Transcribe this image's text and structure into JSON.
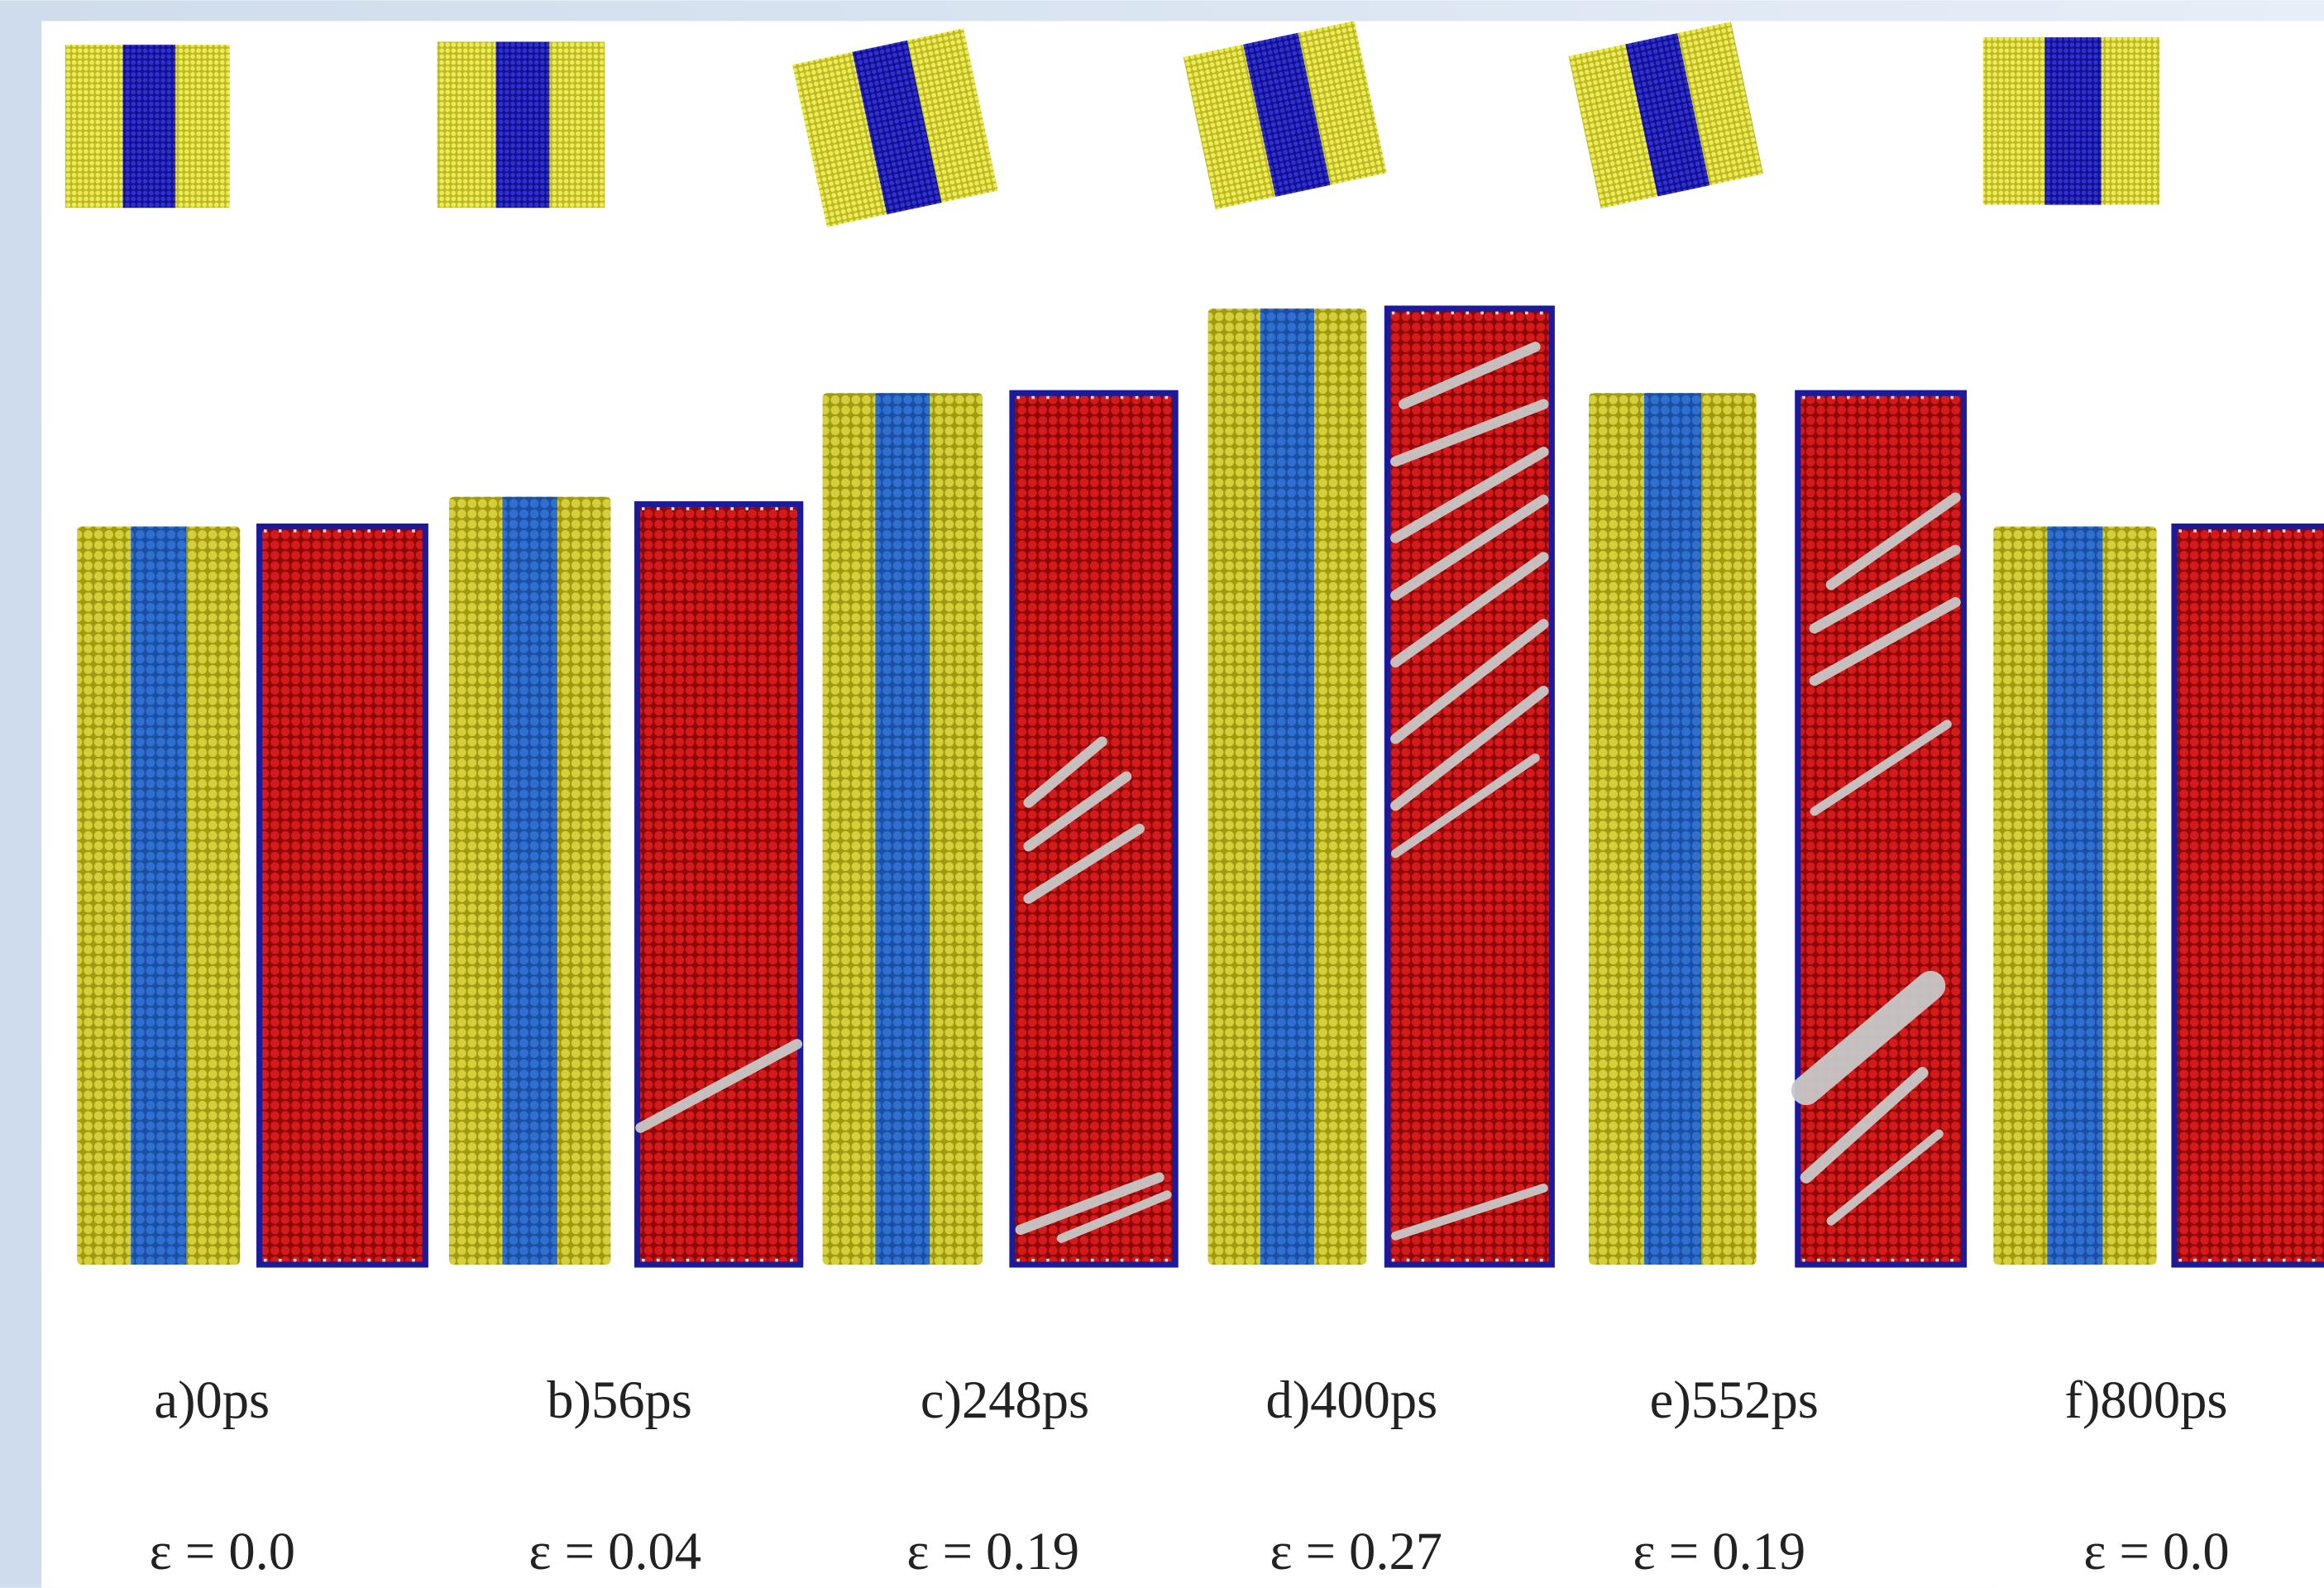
{
  "panels": [
    {
      "label": "a)0ps",
      "strain": "ε = 0.0"
    },
    {
      "label": "b)56ps",
      "strain": "ε = 0.04"
    },
    {
      "label": "c)248ps",
      "strain": "ε = 0.19"
    },
    {
      "label": "d)400ps",
      "strain": "ε = 0.27"
    },
    {
      "label": "e)552ps",
      "strain": "ε = 0.19"
    },
    {
      "label": "f)800ps",
      "strain": "ε = 0.0"
    }
  ]
}
